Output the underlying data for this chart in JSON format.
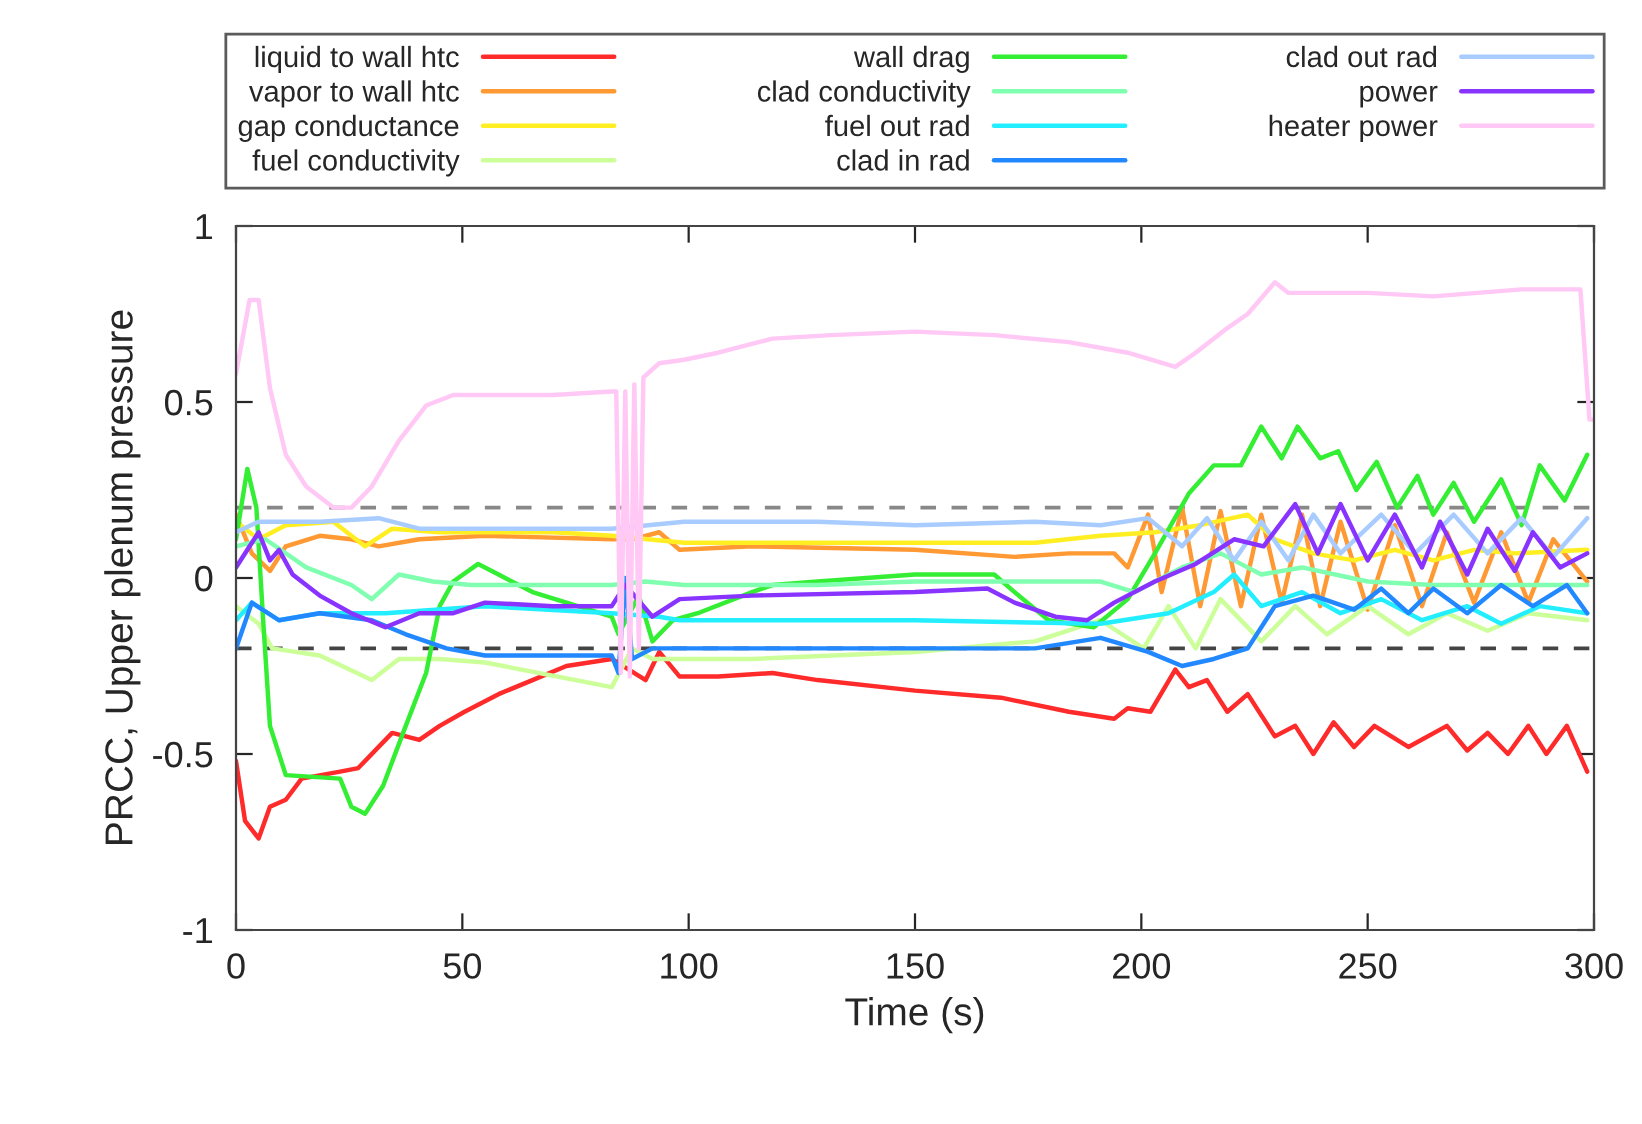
{
  "chart_data": {
    "type": "line",
    "xlabel": "Time (s)",
    "ylabel": "PRCC, Upper plenum pressure",
    "xlim": [
      0,
      300
    ],
    "ylim": [
      -1,
      1
    ],
    "xticks": [
      0,
      50,
      100,
      150,
      200,
      250,
      300
    ],
    "yticks": [
      -1,
      -0.5,
      0,
      0.5,
      1
    ],
    "grid": false,
    "legend": "top",
    "line_style": "solid",
    "marker": "none",
    "ref_lines": [
      {
        "axis": "y",
        "value": 0.2,
        "color": "#888888",
        "line_style": "dashed"
      },
      {
        "axis": "y",
        "value": -0.2,
        "color": "#444444",
        "line_style": "dashed"
      }
    ],
    "series": [
      {
        "name": "liquid to wall htc",
        "color": "#ff2a2a",
        "x": [
          0,
          2,
          5,
          7.5,
          11,
          14.5,
          23,
          27,
          34.5,
          40.5,
          45,
          50.5,
          58,
          65.5,
          73,
          83,
          90.5,
          93.5,
          98,
          106.5,
          118.5,
          128.5,
          150,
          169,
          184,
          194,
          197,
          202,
          207.5,
          210.5,
          214.5,
          219,
          223.5,
          229.5,
          234,
          238,
          242.5,
          247,
          251.5,
          259,
          267.5,
          272,
          276.5,
          281,
          285.5,
          289.5,
          294,
          298.5
        ],
        "values": [
          -0.52,
          -0.69,
          -0.74,
          -0.65,
          -0.63,
          -0.57,
          -0.55,
          -0.54,
          -0.44,
          -0.46,
          -0.42,
          -0.38,
          -0.33,
          -0.29,
          -0.25,
          -0.23,
          -0.29,
          -0.21,
          -0.28,
          -0.28,
          -0.27,
          -0.29,
          -0.32,
          -0.34,
          -0.38,
          -0.4,
          -0.37,
          -0.38,
          -0.26,
          -0.31,
          -0.29,
          -0.38,
          -0.33,
          -0.45,
          -0.42,
          -0.5,
          -0.41,
          -0.48,
          -0.42,
          -0.48,
          -0.42,
          -0.49,
          -0.44,
          -0.5,
          -0.42,
          -0.5,
          -0.42,
          -0.55
        ]
      },
      {
        "name": "vapor to wall htc",
        "color": "#ff9933",
        "x": [
          0,
          3.5,
          7.5,
          11,
          18.5,
          25.5,
          31.5,
          40.5,
          55,
          83,
          87.5,
          93.5,
          98,
          114,
          150,
          172,
          184,
          194,
          197,
          201.5,
          204.5,
          209,
          213,
          217.5,
          222,
          226.5,
          231,
          235.5,
          239.5,
          244,
          250,
          256,
          262,
          267.5,
          273.5,
          279.5,
          285.5,
          291,
          298.5
        ],
        "values": [
          0.18,
          0.07,
          0.02,
          0.09,
          0.12,
          0.11,
          0.09,
          0.11,
          0.12,
          0.11,
          0.11,
          0.13,
          0.08,
          0.09,
          0.08,
          0.06,
          0.07,
          0.07,
          0.03,
          0.18,
          -0.04,
          0.2,
          -0.08,
          0.19,
          -0.08,
          0.18,
          -0.07,
          0.18,
          -0.08,
          0.16,
          -0.09,
          0.15,
          -0.08,
          0.13,
          -0.07,
          0.13,
          -0.07,
          0.11,
          -0.01
        ]
      },
      {
        "name": "gap conductance",
        "color": "#ffee22",
        "x": [
          0,
          5,
          11,
          21.5,
          28.5,
          34.5,
          45,
          70,
          83,
          99,
          128.5,
          150,
          176.5,
          191,
          203,
          213,
          223.5,
          229.5,
          238,
          247,
          256,
          264.5,
          273.5,
          282.5,
          298.5
        ],
        "values": [
          0.16,
          0.11,
          0.15,
          0.16,
          0.09,
          0.14,
          0.13,
          0.13,
          0.12,
          0.1,
          0.1,
          0.1,
          0.1,
          0.12,
          0.13,
          0.15,
          0.18,
          0.11,
          0.07,
          0.05,
          0.08,
          0.05,
          0.08,
          0.07,
          0.08
        ]
      },
      {
        "name": "fuel conductivity",
        "color": "#ccff99",
        "x": [
          0,
          5,
          8,
          18.5,
          30,
          36,
          45,
          55,
          83,
          87.5,
          92,
          114,
          150,
          176.5,
          191,
          200.5,
          206,
          212,
          217.5,
          226.5,
          234,
          241,
          250,
          259,
          267.5,
          276.5,
          285.5,
          298.5
        ],
        "values": [
          -0.08,
          -0.13,
          -0.2,
          -0.22,
          -0.29,
          -0.23,
          -0.23,
          -0.24,
          -0.31,
          -0.2,
          -0.23,
          -0.23,
          -0.21,
          -0.18,
          -0.12,
          -0.2,
          -0.08,
          -0.2,
          -0.06,
          -0.18,
          -0.08,
          -0.16,
          -0.08,
          -0.16,
          -0.1,
          -0.15,
          -0.1,
          -0.12
        ]
      },
      {
        "name": "wall drag",
        "color": "#33ee33",
        "x": [
          0,
          2.5,
          4.5,
          6,
          7.5,
          11,
          23,
          25.5,
          28.5,
          32.5,
          37.5,
          42,
          45,
          48,
          53.5,
          58,
          65.5,
          73,
          83,
          84.5,
          89,
          92,
          96.5,
          102,
          114,
          118.5,
          128.5,
          150,
          167.5,
          172,
          179.5,
          189.5,
          197,
          203,
          210.5,
          216,
          222,
          226.5,
          231,
          234.5,
          239.5,
          243.5,
          247.5,
          252,
          256.5,
          261,
          264.5,
          269,
          273.5,
          279.5,
          284,
          288,
          293.5,
          298.5
        ],
        "values": [
          0.11,
          0.31,
          0.2,
          -0.12,
          -0.42,
          -0.56,
          -0.57,
          -0.65,
          -0.67,
          -0.59,
          -0.42,
          -0.27,
          -0.08,
          -0.01,
          0.04,
          0.01,
          -0.04,
          -0.07,
          -0.11,
          -0.16,
          -0.05,
          -0.18,
          -0.12,
          -0.1,
          -0.04,
          -0.02,
          -0.01,
          0.01,
          0.01,
          -0.04,
          -0.12,
          -0.14,
          -0.06,
          0.07,
          0.24,
          0.32,
          0.32,
          0.43,
          0.34,
          0.43,
          0.34,
          0.36,
          0.25,
          0.33,
          0.2,
          0.29,
          0.18,
          0.27,
          0.16,
          0.28,
          0.15,
          0.32,
          0.22,
          0.35
        ]
      },
      {
        "name": "clad conductivity",
        "color": "#80ffb0",
        "x": [
          0,
          6.5,
          15.5,
          25.5,
          30,
          36,
          43.5,
          52,
          83,
          90.5,
          99,
          128.5,
          150,
          191,
          198.5,
          209,
          217.5,
          226.5,
          235.5,
          250,
          264.5,
          279.5,
          298.5
        ],
        "values": [
          0.09,
          0.11,
          0.03,
          -0.02,
          -0.06,
          0.01,
          -0.01,
          -0.02,
          -0.02,
          -0.01,
          -0.02,
          -0.02,
          -0.01,
          -0.01,
          -0.04,
          0.03,
          0.07,
          0.01,
          0.03,
          -0.01,
          -0.02,
          -0.02,
          -0.02
        ]
      },
      {
        "name": "fuel out rad",
        "color": "#22eeff",
        "x": [
          0,
          3.5,
          9.5,
          18.5,
          33,
          55,
          83,
          93.5,
          98,
          150,
          191,
          206,
          216,
          220.5,
          226.5,
          235.5,
          244,
          253,
          262,
          272,
          279.5,
          288,
          298.5
        ],
        "values": [
          -0.12,
          -0.07,
          -0.12,
          -0.1,
          -0.1,
          -0.08,
          -0.1,
          -0.11,
          -0.12,
          -0.12,
          -0.13,
          -0.1,
          -0.04,
          0.01,
          -0.08,
          -0.04,
          -0.1,
          -0.06,
          -0.12,
          -0.08,
          -0.13,
          -0.08,
          -0.1
        ]
      },
      {
        "name": "clad in rad",
        "color": "#2288ff",
        "x": [
          0,
          3.5,
          9.5,
          18.5,
          30,
          37.5,
          46.5,
          55,
          70,
          83,
          84.5,
          86,
          87.5,
          92,
          98,
          150,
          176.5,
          191,
          201.5,
          209,
          216,
          223.5,
          229.5,
          238,
          247,
          253,
          259,
          264.5,
          272,
          279.5,
          286.5,
          294,
          298.5
        ],
        "values": [
          -0.2,
          -0.07,
          -0.12,
          -0.1,
          -0.12,
          -0.16,
          -0.2,
          -0.22,
          -0.22,
          -0.22,
          -0.27,
          0.0,
          -0.23,
          -0.2,
          -0.2,
          -0.2,
          -0.2,
          -0.17,
          -0.21,
          -0.25,
          -0.23,
          -0.2,
          -0.08,
          -0.05,
          -0.09,
          -0.03,
          -0.1,
          -0.03,
          -0.1,
          -0.02,
          -0.08,
          -0.02,
          -0.1
        ]
      },
      {
        "name": "clad out rad",
        "color": "#a8ccff",
        "x": [
          0,
          5,
          18.5,
          31.5,
          40.5,
          83,
          99,
          128.5,
          150,
          176.5,
          191,
          201.5,
          209,
          214.5,
          220.5,
          226.5,
          232.5,
          238,
          244,
          253,
          260.5,
          269,
          276.5,
          284,
          291,
          298.5
        ],
        "values": [
          0.13,
          0.16,
          0.16,
          0.17,
          0.14,
          0.14,
          0.16,
          0.16,
          0.15,
          0.16,
          0.15,
          0.17,
          0.09,
          0.17,
          0.05,
          0.16,
          0.05,
          0.18,
          0.07,
          0.18,
          0.07,
          0.18,
          0.07,
          0.17,
          0.06,
          0.17
        ]
      },
      {
        "name": "power",
        "color": "#8833ff",
        "x": [
          0,
          5,
          7.5,
          9.5,
          12.5,
          18.5,
          25.5,
          33,
          40.5,
          48,
          55,
          70,
          83,
          86,
          92,
          98,
          114,
          150,
          166,
          172,
          181,
          188,
          194,
          203,
          212,
          220.5,
          227,
          234,
          239,
          244,
          250,
          256,
          262,
          266,
          272,
          276.5,
          282.5,
          286.5,
          292.5,
          298.5
        ],
        "values": [
          0.03,
          0.13,
          0.05,
          0.08,
          0.01,
          -0.05,
          -0.1,
          -0.14,
          -0.1,
          -0.1,
          -0.07,
          -0.08,
          -0.08,
          -0.02,
          -0.11,
          -0.06,
          -0.05,
          -0.04,
          -0.03,
          -0.07,
          -0.11,
          -0.12,
          -0.07,
          -0.01,
          0.04,
          0.11,
          0.09,
          0.21,
          0.07,
          0.21,
          0.05,
          0.18,
          0.03,
          0.16,
          0.01,
          0.14,
          0.02,
          0.13,
          0.03,
          0.07
        ]
      },
      {
        "name": "heater power",
        "color": "#ffc8f5",
        "x": [
          0,
          3,
          5,
          7.5,
          11,
          15.5,
          21.5,
          25.5,
          30,
          36,
          42,
          48,
          55,
          70,
          83,
          84,
          85,
          86,
          87,
          88,
          89,
          90,
          93.5,
          99,
          106.5,
          118.5,
          131.5,
          150,
          167.5,
          184,
          197,
          207.5,
          212,
          219,
          223.5,
          229.5,
          232.5,
          250,
          264.5,
          284,
          297,
          299,
          300
        ],
        "values": [
          0.58,
          0.79,
          0.79,
          0.54,
          0.35,
          0.26,
          0.2,
          0.2,
          0.26,
          0.39,
          0.49,
          0.52,
          0.52,
          0.52,
          0.53,
          0.53,
          -0.27,
          0.53,
          -0.28,
          0.55,
          -0.2,
          0.57,
          0.61,
          0.62,
          0.64,
          0.68,
          0.69,
          0.7,
          0.69,
          0.67,
          0.64,
          0.6,
          0.64,
          0.71,
          0.75,
          0.84,
          0.81,
          0.81,
          0.8,
          0.82,
          0.82,
          0.45,
          0.45
        ]
      }
    ]
  }
}
